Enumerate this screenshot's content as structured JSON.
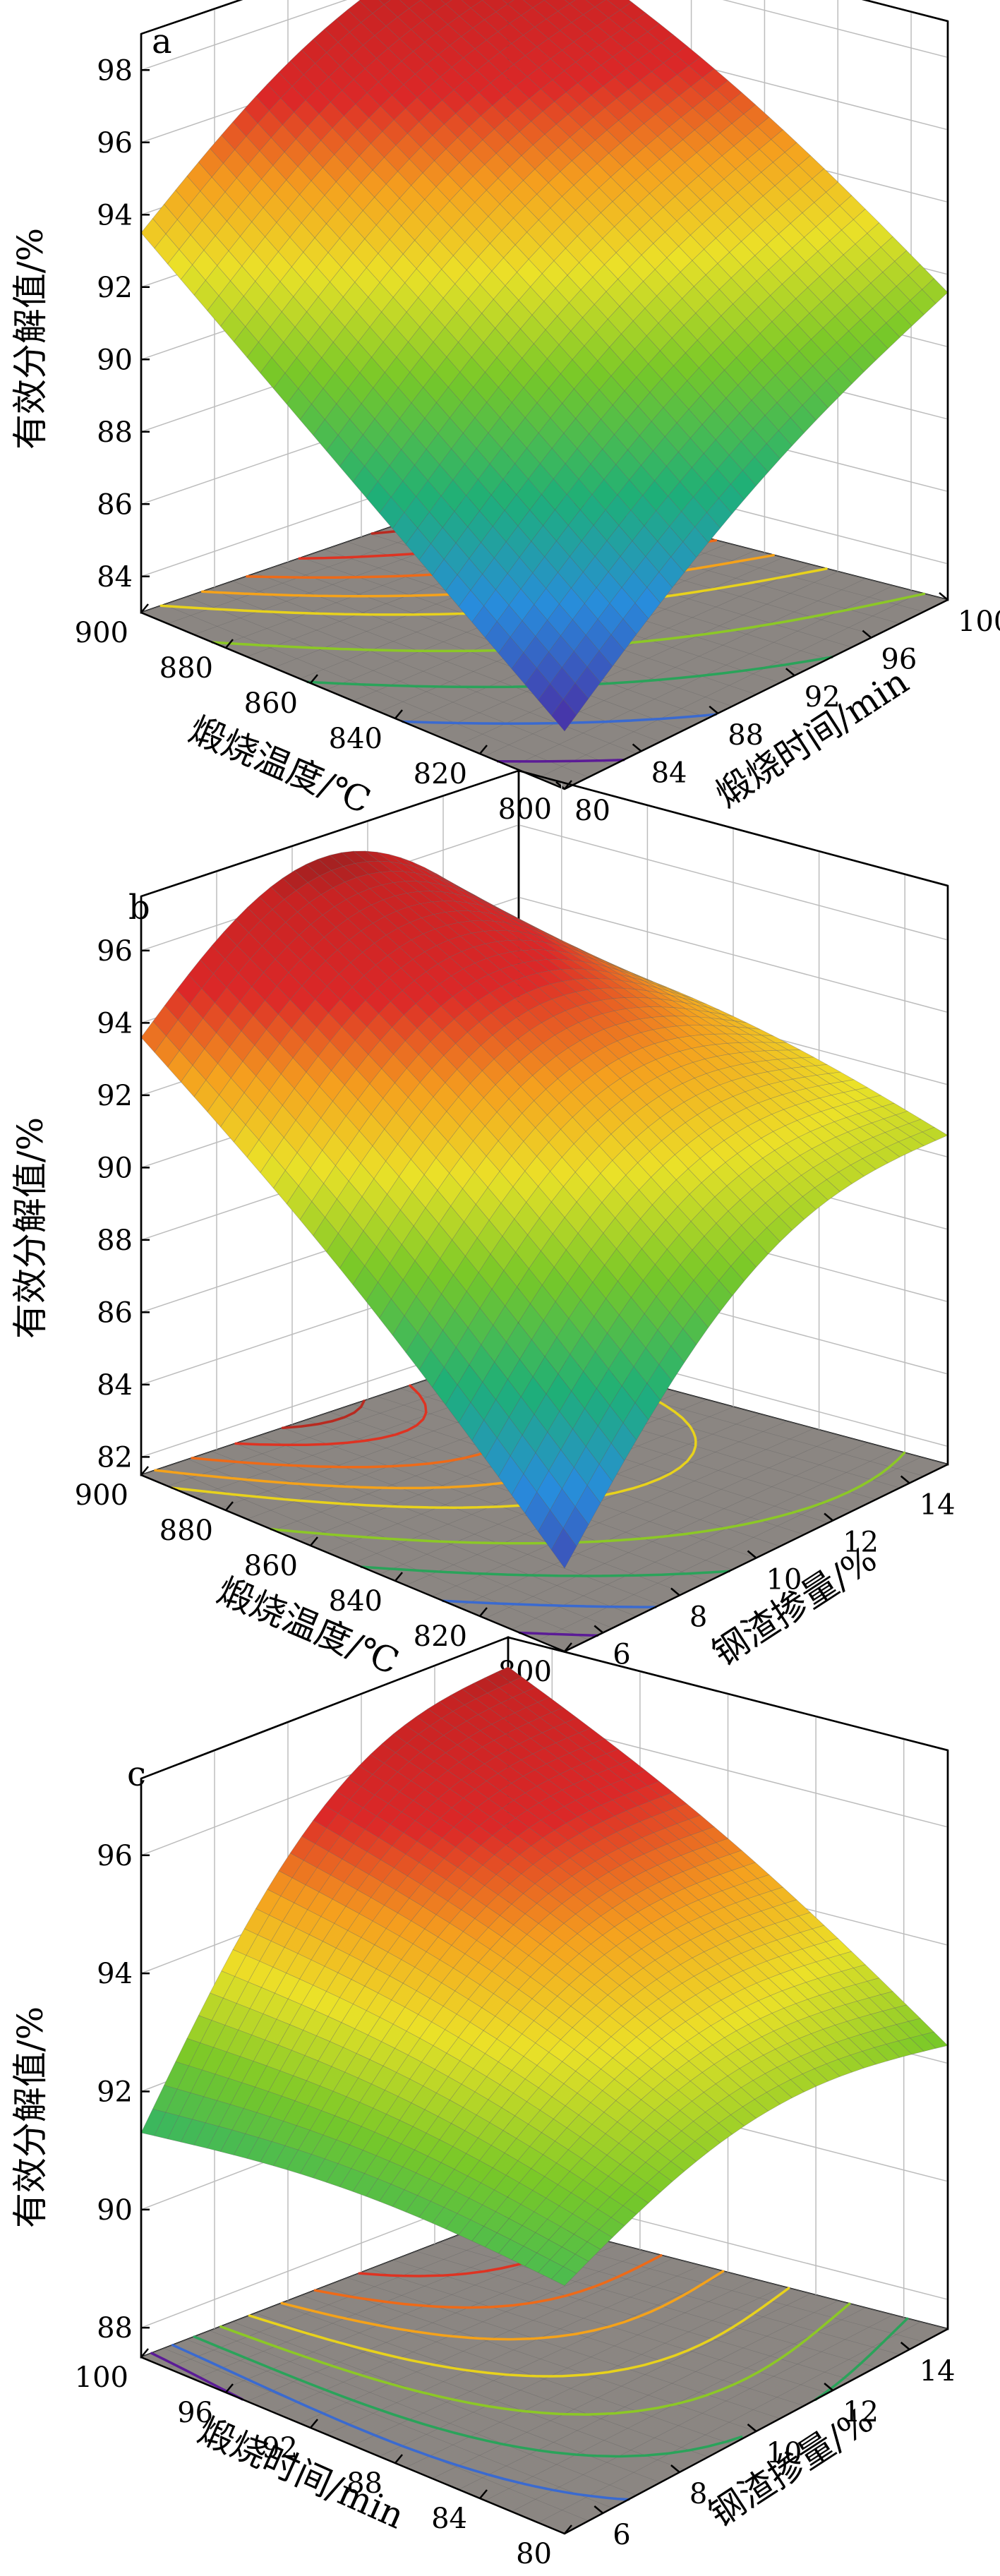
{
  "chart_data": [
    {
      "type": "surface3d",
      "panel_label": "a",
      "zlabel": "有效分解值/%",
      "xlabel": "煅烧温度/℃",
      "ylabel": "煅烧时间/min",
      "x_ticks": [
        900,
        880,
        860,
        840,
        820,
        800
      ],
      "y_ticks": [
        80,
        84,
        88,
        92,
        96,
        100
      ],
      "z_ticks": [
        84,
        86,
        88,
        90,
        92,
        94,
        96,
        98
      ],
      "xlim": [
        800,
        900
      ],
      "ylim": [
        80,
        100
      ],
      "zlim": [
        83,
        99
      ],
      "corner_values": {
        "x900_y80": 93.5,
        "x800_y80": 84.6,
        "x900_y100": 98.9,
        "x800_y100": 91.5
      },
      "grid_size": 32,
      "contour_levels": [
        {
          "value": 86,
          "color": "#5b1b96"
        },
        {
          "value": 88,
          "color": "#3a6ad0"
        },
        {
          "value": 90,
          "color": "#2aa35a"
        },
        {
          "value": 92,
          "color": "#8cc826"
        },
        {
          "value": 94,
          "color": "#e8d21c"
        },
        {
          "value": 95,
          "color": "#f5a21a"
        },
        {
          "value": 96,
          "color": "#ee6a18"
        },
        {
          "value": 97,
          "color": "#de3322"
        },
        {
          "value": 98,
          "color": "#b82a20"
        }
      ]
    },
    {
      "type": "surface3d",
      "panel_label": "b",
      "zlabel": "有效分解值/%",
      "xlabel": "煅烧温度/℃",
      "ylabel": "钢渣掺量/%",
      "x_ticks": [
        900,
        880,
        860,
        840,
        820,
        800
      ],
      "y_ticks": [
        6,
        8,
        10,
        12,
        14
      ],
      "z_ticks": [
        82,
        84,
        86,
        88,
        90,
        92,
        94,
        96
      ],
      "xlim": [
        800,
        900
      ],
      "ylim": [
        5,
        15
      ],
      "zlim": [
        81.5,
        97.5
      ],
      "corner_values": {
        "x900_y5": 93.6,
        "x800_y5": 83.8,
        "x900_y15": 93.0,
        "x800_y15": 90.6
      },
      "peak": {
        "x": 880,
        "y": 11,
        "z": 97.0
      },
      "grid_size": 32,
      "contour_levels": [
        {
          "value": 85,
          "color": "#5b1b96"
        },
        {
          "value": 87,
          "color": "#3a6ad0"
        },
        {
          "value": 89,
          "color": "#2aa35a"
        },
        {
          "value": 91,
          "color": "#8cc826"
        },
        {
          "value": 93,
          "color": "#e8d21c"
        },
        {
          "value": 94,
          "color": "#f5a21a"
        },
        {
          "value": 95,
          "color": "#ee6a18"
        },
        {
          "value": 96,
          "color": "#de3322"
        },
        {
          "value": 96.7,
          "color": "#b82a20"
        }
      ]
    },
    {
      "type": "surface3d",
      "panel_label": "c",
      "zlabel": "有效分解值/%",
      "xlabel": "煅烧时间/min",
      "ylabel": "钢渣掺量/%",
      "x_ticks": [
        100,
        96,
        92,
        88,
        84,
        80
      ],
      "y_ticks": [
        6,
        8,
        10,
        12,
        14
      ],
      "z_ticks": [
        88,
        90,
        92,
        94,
        96
      ],
      "xlim": [
        80,
        100
      ],
      "ylim": [
        5,
        15
      ],
      "zlim": [
        87.5,
        97.3
      ],
      "corner_values": {
        "x100_y5": 91.3,
        "x80_y5": 91.7,
        "x100_y15": 96.8,
        "x80_y15": 92.3
      },
      "grid_size": 32,
      "contour_levels": [
        {
          "value": 91.6,
          "color": "#5b1b96"
        },
        {
          "value": 92.2,
          "color": "#3a6ad0"
        },
        {
          "value": 92.8,
          "color": "#2aa35a"
        },
        {
          "value": 93.5,
          "color": "#8cc826"
        },
        {
          "value": 94.2,
          "color": "#e8d21c"
        },
        {
          "value": 94.9,
          "color": "#f5a21a"
        },
        {
          "value": 95.5,
          "color": "#ee6a18"
        },
        {
          "value": 96.1,
          "color": "#de3322"
        }
      ]
    }
  ]
}
